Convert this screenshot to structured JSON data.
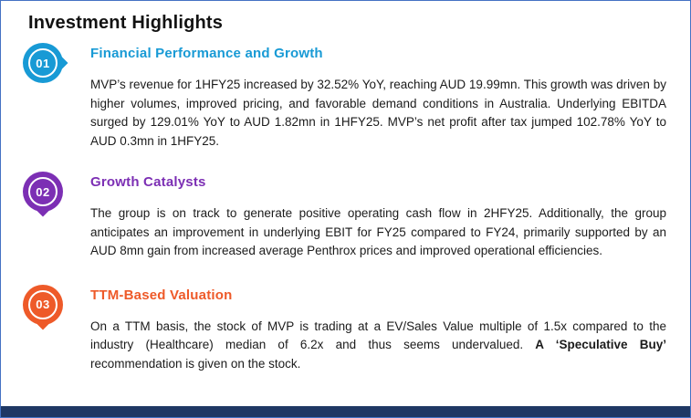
{
  "page": {
    "title": "Investment Highlights",
    "border_color": "#4472C4",
    "footer_bar_color": "#1F3864"
  },
  "sections": [
    {
      "number": "01",
      "color": "#189AD5",
      "heading": "Financial Performance and Growth",
      "body": "MVP’s revenue for 1HFY25 increased by 32.52% YoY, reaching AUD 19.99mn. This growth was driven by higher volumes, improved pricing, and favorable demand conditions in Australia. Underlying EBITDA surged by 129.01% YoY to AUD 1.82mn in 1HFY25. MVP’s net profit after tax jumped 102.78% YoY to AUD 0.3mn in 1HFY25."
    },
    {
      "number": "02",
      "color": "#7C2FB4",
      "heading": "Growth Catalysts",
      "body": "The group is on track to generate positive operating cash flow in 2HFY25. Additionally, the group anticipates an improvement in underlying EBIT for FY25 compared to FY24, primarily supported by an AUD 8mn gain from increased average Penthrox prices and improved operational efficiencies."
    },
    {
      "number": "03",
      "color": "#EE5A29",
      "heading": "TTM-Based Valuation",
      "body_part1": "On a TTM basis, the stock of MVP is trading at a EV/Sales Value multiple of 1.5x compared to the industry (Healthcare) median of 6.2x and thus seems undervalued. ",
      "body_bold": "A ‘Speculative Buy’",
      "body_part2": " recommendation is given on the stock."
    }
  ]
}
